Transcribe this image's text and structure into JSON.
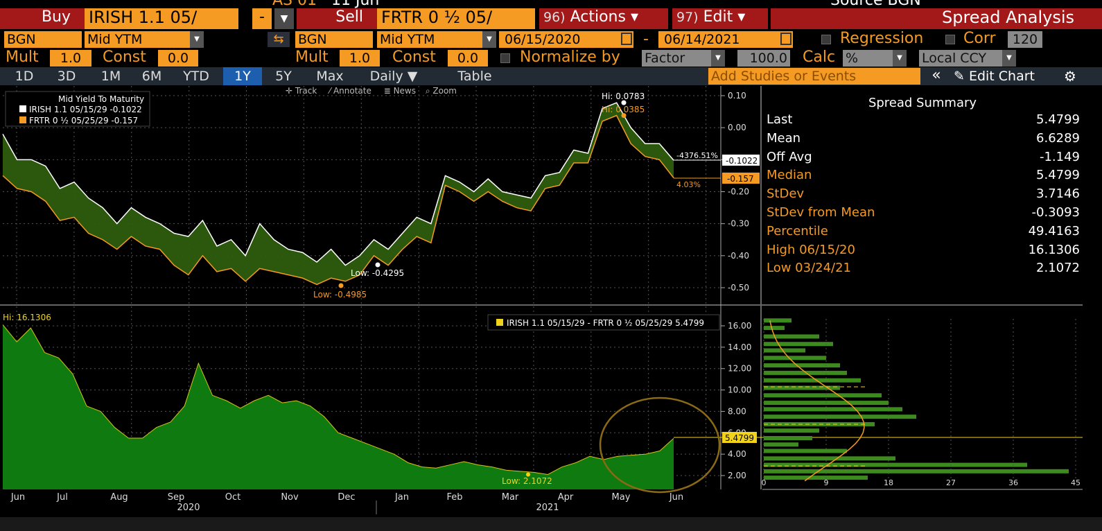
{
  "header": {
    "top_strip_left": "AS 01",
    "top_strip_date": "11 Jun",
    "top_strip_source": "Source BGN",
    "buy_label": "Buy",
    "buy_security": "IRISH 1.1 05/",
    "dash_button": "-",
    "sell_label": "Sell",
    "sell_security": "FRTR 0 ½ 05/",
    "actions_num": "96)",
    "actions_label": "Actions ▾",
    "edit_num": "97)",
    "edit_label": "Edit ▾",
    "title": "Spread Analysis"
  },
  "row2": {
    "source_left": "BGN",
    "field_left": "Mid YTM",
    "source_right": "BGN",
    "field_right": "Mid YTM",
    "date_from": "06/15/2020",
    "date_sep": "-",
    "date_to": "06/14/2021",
    "regression_label": "Regression",
    "corr_label": "Corr",
    "corr_value": "120"
  },
  "row3": {
    "mult_label": "Mult",
    "mult_left": "1.0",
    "const_label": "Const",
    "const_left": "0.0",
    "mult_right": "1.0",
    "const_right": "0.0",
    "normalize_label": "Normalize by",
    "normalize_select": "Factor",
    "normalize_value": "100.0",
    "calc_label": "Calc",
    "calc_value": "%",
    "ccy_value": "Local CCY"
  },
  "tabs": {
    "items": [
      "1D",
      "3D",
      "1M",
      "6M",
      "YTD",
      "1Y",
      "5Y",
      "Max",
      "Daily ▼",
      "Table"
    ],
    "active": "1Y",
    "studies_placeholder": "Add Studies or Events",
    "collapse": "«",
    "edit_chart": "✎ Edit Chart",
    "gear": "⚙"
  },
  "toolbar": {
    "track": "Track",
    "annotate": "Annotate",
    "news": "News",
    "zoom": "Zoom"
  },
  "summary": {
    "title": "Spread Summary",
    "rows": [
      {
        "k": "Last",
        "v": "5.4799",
        "color": "#ffffff"
      },
      {
        "k": "Mean",
        "v": "6.6289",
        "color": "#ffffff"
      },
      {
        "k": "Off Avg",
        "v": "-1.149",
        "color": "#ffffff"
      },
      {
        "k": "Median",
        "v": "5.4799",
        "color": "#f59a23"
      },
      {
        "k": "StDev",
        "v": "3.7146",
        "color": "#f59a23"
      },
      {
        "k": "StDev from Mean",
        "v": "-0.3093",
        "color": "#f59a23"
      },
      {
        "k": "Percentile",
        "v": "49.4163",
        "color": "#f59a23"
      },
      {
        "k": "High 06/15/20",
        "v": "16.1306",
        "color": "#f59a23"
      },
      {
        "k": "Low 03/24/21",
        "v": "2.1072",
        "color": "#f59a23"
      }
    ]
  },
  "colors": {
    "accent": "#f59a23",
    "header_red": "#a31919",
    "spread_fill": "#0f7a0f",
    "band_fill": "#2e5d0f",
    "active_tab": "#1d5fae"
  },
  "chart_data": [
    {
      "type": "line",
      "title": "Mid Yield To Maturity",
      "series": [
        {
          "name": "IRISH 1.1 05/15/29",
          "last": "-0.1022",
          "color": "#ffffff",
          "values": [
            -0.02,
            -0.1,
            -0.1,
            -0.12,
            -0.19,
            -0.17,
            -0.22,
            -0.25,
            -0.3,
            -0.25,
            -0.28,
            -0.3,
            -0.33,
            -0.34,
            -0.29,
            -0.37,
            -0.35,
            -0.4,
            -0.3,
            -0.35,
            -0.38,
            -0.39,
            -0.42,
            -0.38,
            -0.43,
            -0.4,
            -0.35,
            -0.38,
            -0.33,
            -0.28,
            -0.3,
            -0.15,
            -0.17,
            -0.2,
            -0.16,
            -0.2,
            -0.21,
            -0.22,
            -0.15,
            -0.14,
            -0.07,
            -0.08,
            0.06,
            0.078,
            0.0,
            -0.05,
            -0.05,
            -0.102
          ]
        },
        {
          "name": "FRTR 0 ½ 05/25/29",
          "last": "-0.157",
          "color": "#f59a23",
          "values": [
            -0.15,
            -0.19,
            -0.2,
            -0.23,
            -0.29,
            -0.28,
            -0.33,
            -0.35,
            -0.38,
            -0.34,
            -0.37,
            -0.38,
            -0.43,
            -0.46,
            -0.4,
            -0.45,
            -0.44,
            -0.48,
            -0.44,
            -0.45,
            -0.46,
            -0.47,
            -0.49,
            -0.47,
            -0.48,
            -0.46,
            -0.4,
            -0.43,
            -0.38,
            -0.34,
            -0.36,
            -0.18,
            -0.2,
            -0.23,
            -0.2,
            -0.23,
            -0.25,
            -0.26,
            -0.19,
            -0.18,
            -0.11,
            -0.11,
            0.02,
            0.038,
            -0.05,
            -0.09,
            -0.1,
            -0.157
          ]
        }
      ],
      "ylim": [
        -0.53,
        0.11
      ],
      "yticks": [
        "0.10",
        "0.00",
        "-0.10",
        "-0.20",
        "-0.30",
        "-0.40",
        "-0.50"
      ],
      "annotations": {
        "hi_white": "Hi: 0.0783",
        "hi_orange": "Hi: 0.0385",
        "low_white": "Low: -0.4295",
        "low_orange": "Low: -0.4985",
        "pct_white": "-4376.51%",
        "pct_orange": "4.03%",
        "last_white": "-0.1022",
        "last_orange": "-0.157"
      }
    },
    {
      "type": "area",
      "series": [
        {
          "name": "IRISH 1.1 05/15/29 - FRTR 0 ½ 05/25/29",
          "last": "5.4799",
          "color": "#f2d31b",
          "values": [
            16.1,
            14.5,
            15.8,
            13.5,
            13.0,
            11.5,
            8.5,
            8.0,
            6.5,
            5.5,
            5.5,
            6.5,
            7.0,
            8.5,
            12.5,
            9.5,
            9.0,
            8.3,
            9.0,
            9.5,
            8.8,
            9.0,
            8.5,
            7.5,
            6.0,
            5.5,
            5.0,
            4.5,
            4.0,
            3.2,
            2.8,
            2.7,
            3.0,
            3.3,
            3.0,
            2.8,
            2.5,
            2.4,
            2.3,
            2.1,
            2.8,
            3.2,
            3.8,
            3.5,
            3.8,
            3.9,
            4.0,
            4.3,
            5.4799
          ]
        }
      ],
      "ylim": [
        1.0,
        17.0
      ],
      "yticks": [
        "16.00",
        "14.00",
        "12.00",
        "10.00",
        "8.00",
        "6.00",
        "4.00",
        "2.00"
      ],
      "hi_label": "Hi: 16.1306",
      "low_label": "Low: 2.1072",
      "last_label": "5.4799"
    },
    {
      "type": "bar",
      "orientation": "horizontal",
      "x_ticks": [
        "0",
        "9",
        "18",
        "27",
        "36",
        "45"
      ],
      "xlim": [
        0,
        45
      ],
      "bins_y": [
        16.5,
        15.8,
        15.0,
        14.3,
        13.7,
        13.0,
        12.3,
        11.6,
        10.9,
        10.2,
        9.5,
        8.8,
        8.2,
        7.5,
        6.8,
        6.2,
        5.5,
        4.9,
        4.3,
        3.6,
        3.0,
        2.4,
        1.8
      ],
      "counts": [
        4,
        3,
        8,
        10,
        6,
        9,
        11,
        12,
        14,
        11,
        17,
        18,
        20,
        22,
        16,
        8,
        7,
        5,
        12,
        19,
        38,
        44,
        15
      ]
    }
  ],
  "xaxis": {
    "months": [
      "Jun",
      "Jul",
      "Aug",
      "Sep",
      "Oct",
      "Nov",
      "Dec",
      "Jan",
      "Feb",
      "Mar",
      "Apr",
      "May",
      "Jun"
    ],
    "years": [
      "2020",
      "2021"
    ]
  }
}
